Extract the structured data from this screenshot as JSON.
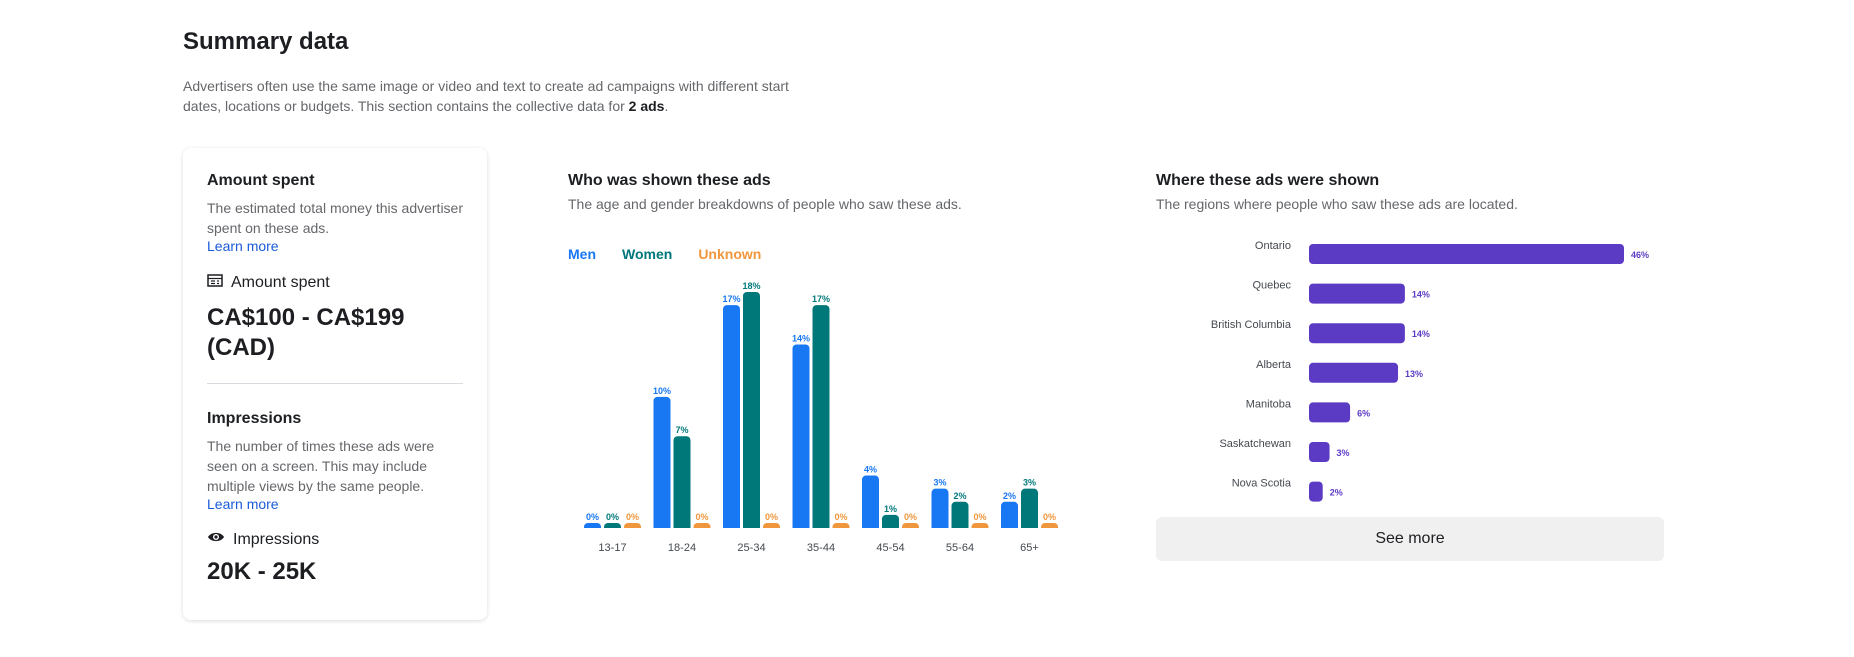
{
  "summary": {
    "title": "Summary data",
    "description_before": "Advertisers often use the same image or video and text to create ad campaigns with different start dates, locations or budgets. This section contains the collective data for ",
    "description_bold": "2 ads",
    "description_after": "."
  },
  "amount_spent": {
    "heading": "Amount spent",
    "description": "The estimated total money this advertiser spent on these ads.",
    "learn_more": "Learn more",
    "icon": "money-bill-icon",
    "metric_label": "Amount spent",
    "value": "CA$100 - CA$199 (CAD)"
  },
  "impressions": {
    "heading": "Impressions",
    "description": "The number of times these ads were seen on a screen. This may include multiple views by the same people.",
    "learn_more": "Learn more",
    "icon": "eye-icon",
    "metric_label": "Impressions",
    "value": "20K - 25K"
  },
  "age_gender": {
    "heading": "Who was shown these ads",
    "subtitle": "The age and gender breakdowns of people who saw these ads."
  },
  "regions": {
    "heading": "Where these ads were shown",
    "subtitle": "The regions where people who saw these ads are located.",
    "see_more": "See more"
  },
  "colors": {
    "men": "#1877f2",
    "women": "#00787a",
    "unknown": "#f0963c",
    "region": "#5c3bc4"
  },
  "chart_data": [
    {
      "type": "bar",
      "categories": [
        "13-17",
        "18-24",
        "25-34",
        "35-44",
        "45-54",
        "55-64",
        "65+"
      ],
      "series": [
        {
          "name": "Men",
          "values": [
            0,
            10,
            17,
            14,
            4,
            3,
            2
          ],
          "labels": [
            "0%",
            "10%",
            "17%",
            "14%",
            "4%",
            "3%",
            "2%"
          ]
        },
        {
          "name": "Women",
          "values": [
            0,
            7,
            18,
            17,
            1,
            2,
            3
          ],
          "labels": [
            "0%",
            "7%",
            "18%",
            "17%",
            "1%",
            "2%",
            "3%"
          ]
        },
        {
          "name": "Unknown",
          "values": [
            0,
            0,
            0,
            0,
            0,
            0,
            0
          ],
          "labels": [
            "0%",
            "0%",
            "0%",
            "0%",
            "0%",
            "0%",
            "0%"
          ]
        }
      ],
      "ylim": [
        0,
        18
      ],
      "grid": false,
      "legend": "top-left"
    },
    {
      "type": "bar",
      "orientation": "horizontal",
      "categories": [
        "Ontario",
        "Quebec",
        "British Columbia",
        "Alberta",
        "Manitoba",
        "Saskatchewan",
        "Nova Scotia"
      ],
      "values": [
        46,
        14,
        14,
        13,
        6,
        3,
        2
      ],
      "labels": [
        "46%",
        "14%",
        "14%",
        "13%",
        "6%",
        "3%",
        "2%"
      ],
      "xlim": [
        0,
        46
      ],
      "grid": false
    }
  ]
}
